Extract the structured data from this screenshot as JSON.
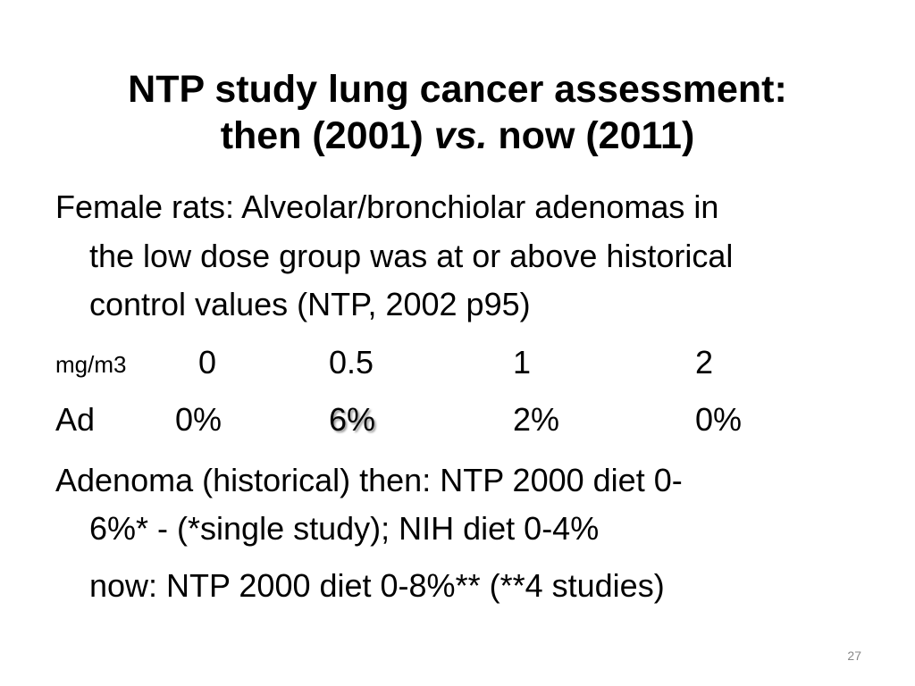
{
  "slide": {
    "title_line1": "NTP study lung cancer assessment:",
    "title_line2_a": "then (2001) ",
    "title_line2_vs": "vs.",
    "title_line2_b": " now (2011)",
    "intro_line1": "Female rats: Alveolar/bronchiolar adenomas in",
    "intro_line2": "the low dose group was at or above historical",
    "intro_line3": "control values  (NTP, 2002 p95)",
    "dose_row": {
      "label": "mg/m3",
      "values": [
        "0",
        "0.5",
        "1",
        "2"
      ]
    },
    "ad_row": {
      "label": "Ad",
      "values": [
        "0%",
        "6%",
        "2%",
        "0%"
      ]
    },
    "historical_line1": "Adenoma (historical) then: NTP 2000 diet   0-",
    "historical_line2": "6%* - (*single study); NIH diet 0-4%",
    "now_line": "now:  NTP 2000 diet  0-8%** (**4 studies)",
    "page_number": "27"
  }
}
